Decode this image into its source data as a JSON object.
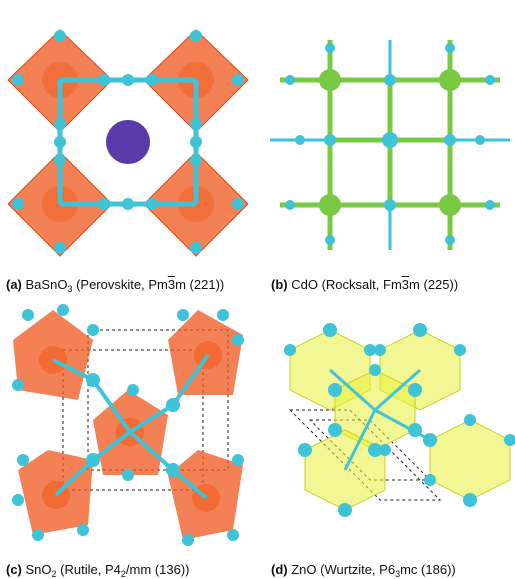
{
  "panels": [
    {
      "id": "a",
      "letter": "(a)",
      "formula_pre": "BaSnO",
      "formula_sub": "3",
      "structure": "Perovskite",
      "sg_pre": "Pm",
      "sg_bar": "3",
      "sg_post": "m",
      "sg_num": "(221)"
    },
    {
      "id": "b",
      "letter": "(b)",
      "formula_pre": "CdO",
      "formula_sub": "",
      "structure": "Rocksalt",
      "sg_pre": "Fm",
      "sg_bar": "3",
      "sg_post": "m",
      "sg_num": "(225)"
    },
    {
      "id": "c",
      "letter": "(c)",
      "formula_pre": "SnO",
      "formula_sub": "2",
      "structure": "Rutile",
      "sg_pre": "P4",
      "sg_sub": "2",
      "sg_post": "/mm",
      "sg_num": "(136)"
    },
    {
      "id": "d",
      "letter": "(d)",
      "formula_pre": "ZnO",
      "formula_sub": "",
      "structure": "Wurtzite",
      "sg_pre": "P6",
      "sg_sub": "3",
      "sg_post": "mc",
      "sg_num": "(186)"
    }
  ],
  "colors": {
    "oxygen": "#3fc3d6",
    "octahedron_orange": "#f0551c",
    "barium_purple": "#5a3aa8",
    "cadmium_green": "#7ac943",
    "zinc_yellow": "#e9f03a",
    "unit_cell_line": "#222222"
  }
}
